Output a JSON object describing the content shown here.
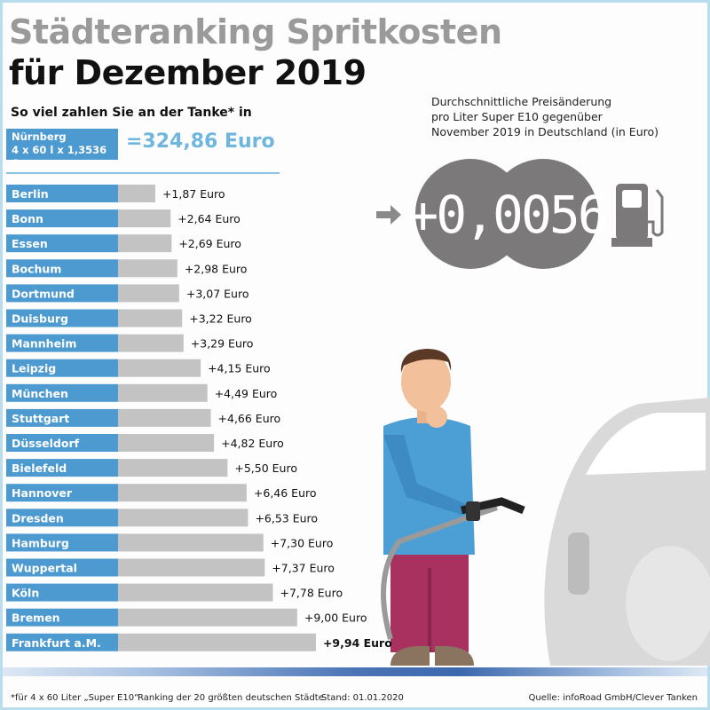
{
  "title_line1": "Städteranking Spritkosten",
  "title_line2": "für Dezember 2019",
  "subtitle": "So viel zahlen Sie an der Tanke* in",
  "reference": {
    "city": "Nürnberg",
    "formula": "4 x 60 l x 1,3536 €",
    "total": "=324,86 Euro"
  },
  "price_change": {
    "description": [
      "Durchschnittliche Preisänderung",
      "pro Liter Super E10 gegenüber",
      "November 2019 in Deutschland (in Euro)"
    ],
    "value": "+0,0056"
  },
  "footer": {
    "note": "*für 4 x 60 Liter „Super E10“",
    "ranking": "Ranking der 20 größten deutschen Städte",
    "date": "Stand: 01.01.2020",
    "source": "Quelle: infoRoad GmbH/Clever Tanken"
  },
  "colors": {
    "label_bar": "#4d9ad1",
    "value_bar": "#c3c3c3",
    "accent": "#6fb6de",
    "display": "#7b7979"
  },
  "chart_data": {
    "type": "bar",
    "orientation": "horizontal",
    "categories": [
      "Berlin",
      "Bonn",
      "Essen",
      "Bochum",
      "Dortmund",
      "Duisburg",
      "Mannheim",
      "Leipzig",
      "München",
      "Stuttgart",
      "Düsseldorf",
      "Bielefeld",
      "Hannover",
      "Dresden",
      "Hamburg",
      "Wuppertal",
      "Köln",
      "Bremen",
      "Frankfurt a.M."
    ],
    "values": [
      1.87,
      2.64,
      2.69,
      2.98,
      3.07,
      3.22,
      3.29,
      4.15,
      4.49,
      4.66,
      4.82,
      5.5,
      6.46,
      6.53,
      7.3,
      7.37,
      7.78,
      9.0,
      9.94
    ],
    "labels": [
      "+1,87 Euro",
      "+2,64 Euro",
      "+2,69 Euro",
      "+2,98 Euro",
      "+3,07 Euro",
      "+3,22 Euro",
      "+3,29 Euro",
      "+4,15 Euro",
      "+4,49 Euro",
      "+4,66 Euro",
      "+4,82 Euro",
      "+5,50 Euro",
      "+6,46 Euro",
      "+6,53 Euro",
      "+7,30 Euro",
      "+7,37 Euro",
      "+7,78 Euro",
      "+9,00 Euro",
      "+9,94 Euro"
    ],
    "unit": "Euro",
    "xlim": [
      0,
      10
    ],
    "grid": false,
    "highlight": "Frankfurt a.M."
  }
}
